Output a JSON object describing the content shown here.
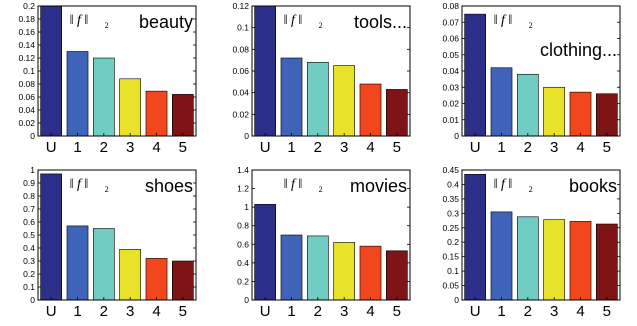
{
  "norm_label": {
    "main": "‖ f ‖",
    "sub": "2"
  },
  "chart_data": [
    {
      "type": "bar",
      "title": "beauty",
      "categories": [
        "U",
        "1",
        "2",
        "3",
        "4",
        "5"
      ],
      "values": [
        0.2,
        0.13,
        0.12,
        0.088,
        0.069,
        0.064
      ],
      "ylim": [
        0,
        0.2
      ],
      "yticks": [
        0,
        0.02,
        0.04,
        0.06,
        0.08,
        0.1,
        0.12,
        0.14,
        0.16,
        0.18,
        0.2
      ],
      "ytick_labels": [
        "0",
        "0.02",
        "0.04",
        "0.06",
        "0.08",
        "0.1",
        "0.12",
        "0.14",
        "0.16",
        "0.18",
        "0.2"
      ],
      "title_lines": 1
    },
    {
      "type": "bar",
      "title": "tools...",
      "categories": [
        "U",
        "1",
        "2",
        "3",
        "4",
        "5"
      ],
      "values": [
        0.12,
        0.072,
        0.068,
        0.065,
        0.048,
        0.043
      ],
      "ylim": [
        0,
        0.12
      ],
      "yticks": [
        0,
        0.02,
        0.04,
        0.06,
        0.08,
        0.1,
        0.12
      ],
      "ytick_labels": [
        "0",
        "0.02",
        "0.04",
        "0.06",
        "0.08",
        "0.1",
        "0.12"
      ],
      "title_lines": 1
    },
    {
      "type": "bar",
      "title": "clothing...",
      "categories": [
        "U",
        "1",
        "2",
        "3",
        "4",
        "5"
      ],
      "values": [
        0.075,
        0.042,
        0.038,
        0.03,
        0.027,
        0.026
      ],
      "ylim": [
        0,
        0.08
      ],
      "yticks": [
        0,
        0.01,
        0.02,
        0.03,
        0.04,
        0.05,
        0.06,
        0.07,
        0.08
      ],
      "ytick_labels": [
        "0",
        "0.01",
        "0.02",
        "0.03",
        "0.04",
        "0.05",
        "0.06",
        "0.07",
        "0.08"
      ],
      "title_lines": 2
    },
    {
      "type": "bar",
      "title": "shoes",
      "categories": [
        "U",
        "1",
        "2",
        "3",
        "4",
        "5"
      ],
      "values": [
        0.97,
        0.57,
        0.55,
        0.39,
        0.32,
        0.3
      ],
      "ylim": [
        0,
        1
      ],
      "yticks": [
        0,
        0.1,
        0.2,
        0.3,
        0.4,
        0.5,
        0.6,
        0.7,
        0.8,
        0.9,
        1
      ],
      "ytick_labels": [
        "0",
        "0.1",
        "0.2",
        "0.3",
        "0.4",
        "0.5",
        "0.6",
        "0.7",
        "0.8",
        "0.9",
        "1"
      ],
      "title_lines": 1
    },
    {
      "type": "bar",
      "title": "movies",
      "categories": [
        "U",
        "1",
        "2",
        "3",
        "4",
        "5"
      ],
      "values": [
        1.03,
        0.7,
        0.69,
        0.62,
        0.58,
        0.53
      ],
      "ylim": [
        0,
        1.4
      ],
      "yticks": [
        0,
        0.2,
        0.4,
        0.6,
        0.8,
        1,
        1.2,
        1.4
      ],
      "ytick_labels": [
        "0",
        "0.2",
        "0.4",
        "0.6",
        "0.8",
        "1",
        "1.2",
        "1.4"
      ],
      "title_lines": 1
    },
    {
      "type": "bar",
      "title": "books",
      "categories": [
        "U",
        "1",
        "2",
        "3",
        "4",
        "5"
      ],
      "values": [
        0.435,
        0.305,
        0.288,
        0.278,
        0.272,
        0.263
      ],
      "ylim": [
        0,
        0.45
      ],
      "yticks": [
        0,
        0.05,
        0.1,
        0.15,
        0.2,
        0.25,
        0.3,
        0.35,
        0.4,
        0.45
      ],
      "ytick_labels": [
        "0",
        "0.05",
        "0.1",
        "0.15",
        "0.2",
        "0.25",
        "0.3",
        "0.35",
        "0.4",
        "0.45"
      ],
      "title_lines": 1
    }
  ],
  "colors": {
    "bars": [
      "#2b2f8a",
      "#3f63b8",
      "#6fcdc3",
      "#e8e32a",
      "#f2461d",
      "#7e1416"
    ]
  }
}
